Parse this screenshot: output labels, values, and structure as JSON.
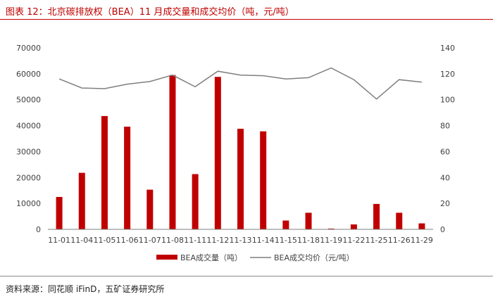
{
  "header": {
    "title": "图表 12：北京碳排放权（BEA）11 月成交量和成交均价（吨，元/吨）"
  },
  "footer": {
    "source": "资料来源：同花顺 iFinD，五矿证券研究所"
  },
  "colors": {
    "bar": "#c00000",
    "line": "#7f7f7f",
    "title": "#c00000",
    "axis": "#7f7f7f"
  },
  "chart_data": {
    "type": "bar+line",
    "categories": [
      "11-01",
      "11-04",
      "11-05",
      "11-06",
      "11-07",
      "11-08",
      "11-11",
      "11-12",
      "11-13",
      "11-14",
      "11-15",
      "11-18",
      "11-19",
      "11-22",
      "11-25",
      "11-26",
      "11-29"
    ],
    "series": [
      {
        "name": "BEA成交量（吨）",
        "type": "bar",
        "axis": "left",
        "values": [
          12500,
          21800,
          43700,
          39600,
          15300,
          59500,
          21300,
          58800,
          38800,
          37800,
          3400,
          6400,
          300,
          1900,
          9800,
          6400,
          2300
        ]
      },
      {
        "name": "BEA成交均价（元/吨）",
        "type": "line",
        "axis": "right",
        "values": [
          116,
          109,
          108.5,
          112,
          114,
          119,
          110,
          122,
          119,
          118.5,
          116,
          117,
          124.5,
          115.5,
          100.5,
          115.5,
          113.5
        ]
      }
    ],
    "y_left": {
      "min": 0,
      "max": 70000,
      "ticks": [
        "0",
        "10000",
        "20000",
        "30000",
        "40000",
        "50000",
        "60000",
        "70000"
      ]
    },
    "y_right": {
      "min": 0,
      "max": 140,
      "ticks": [
        "0",
        "20",
        "40",
        "60",
        "80",
        "100",
        "120",
        "140"
      ]
    },
    "legend": {
      "position": "bottom",
      "bar_label": "BEA成交量（吨）",
      "line_label": "BEA成交均价（元/吨）"
    }
  }
}
